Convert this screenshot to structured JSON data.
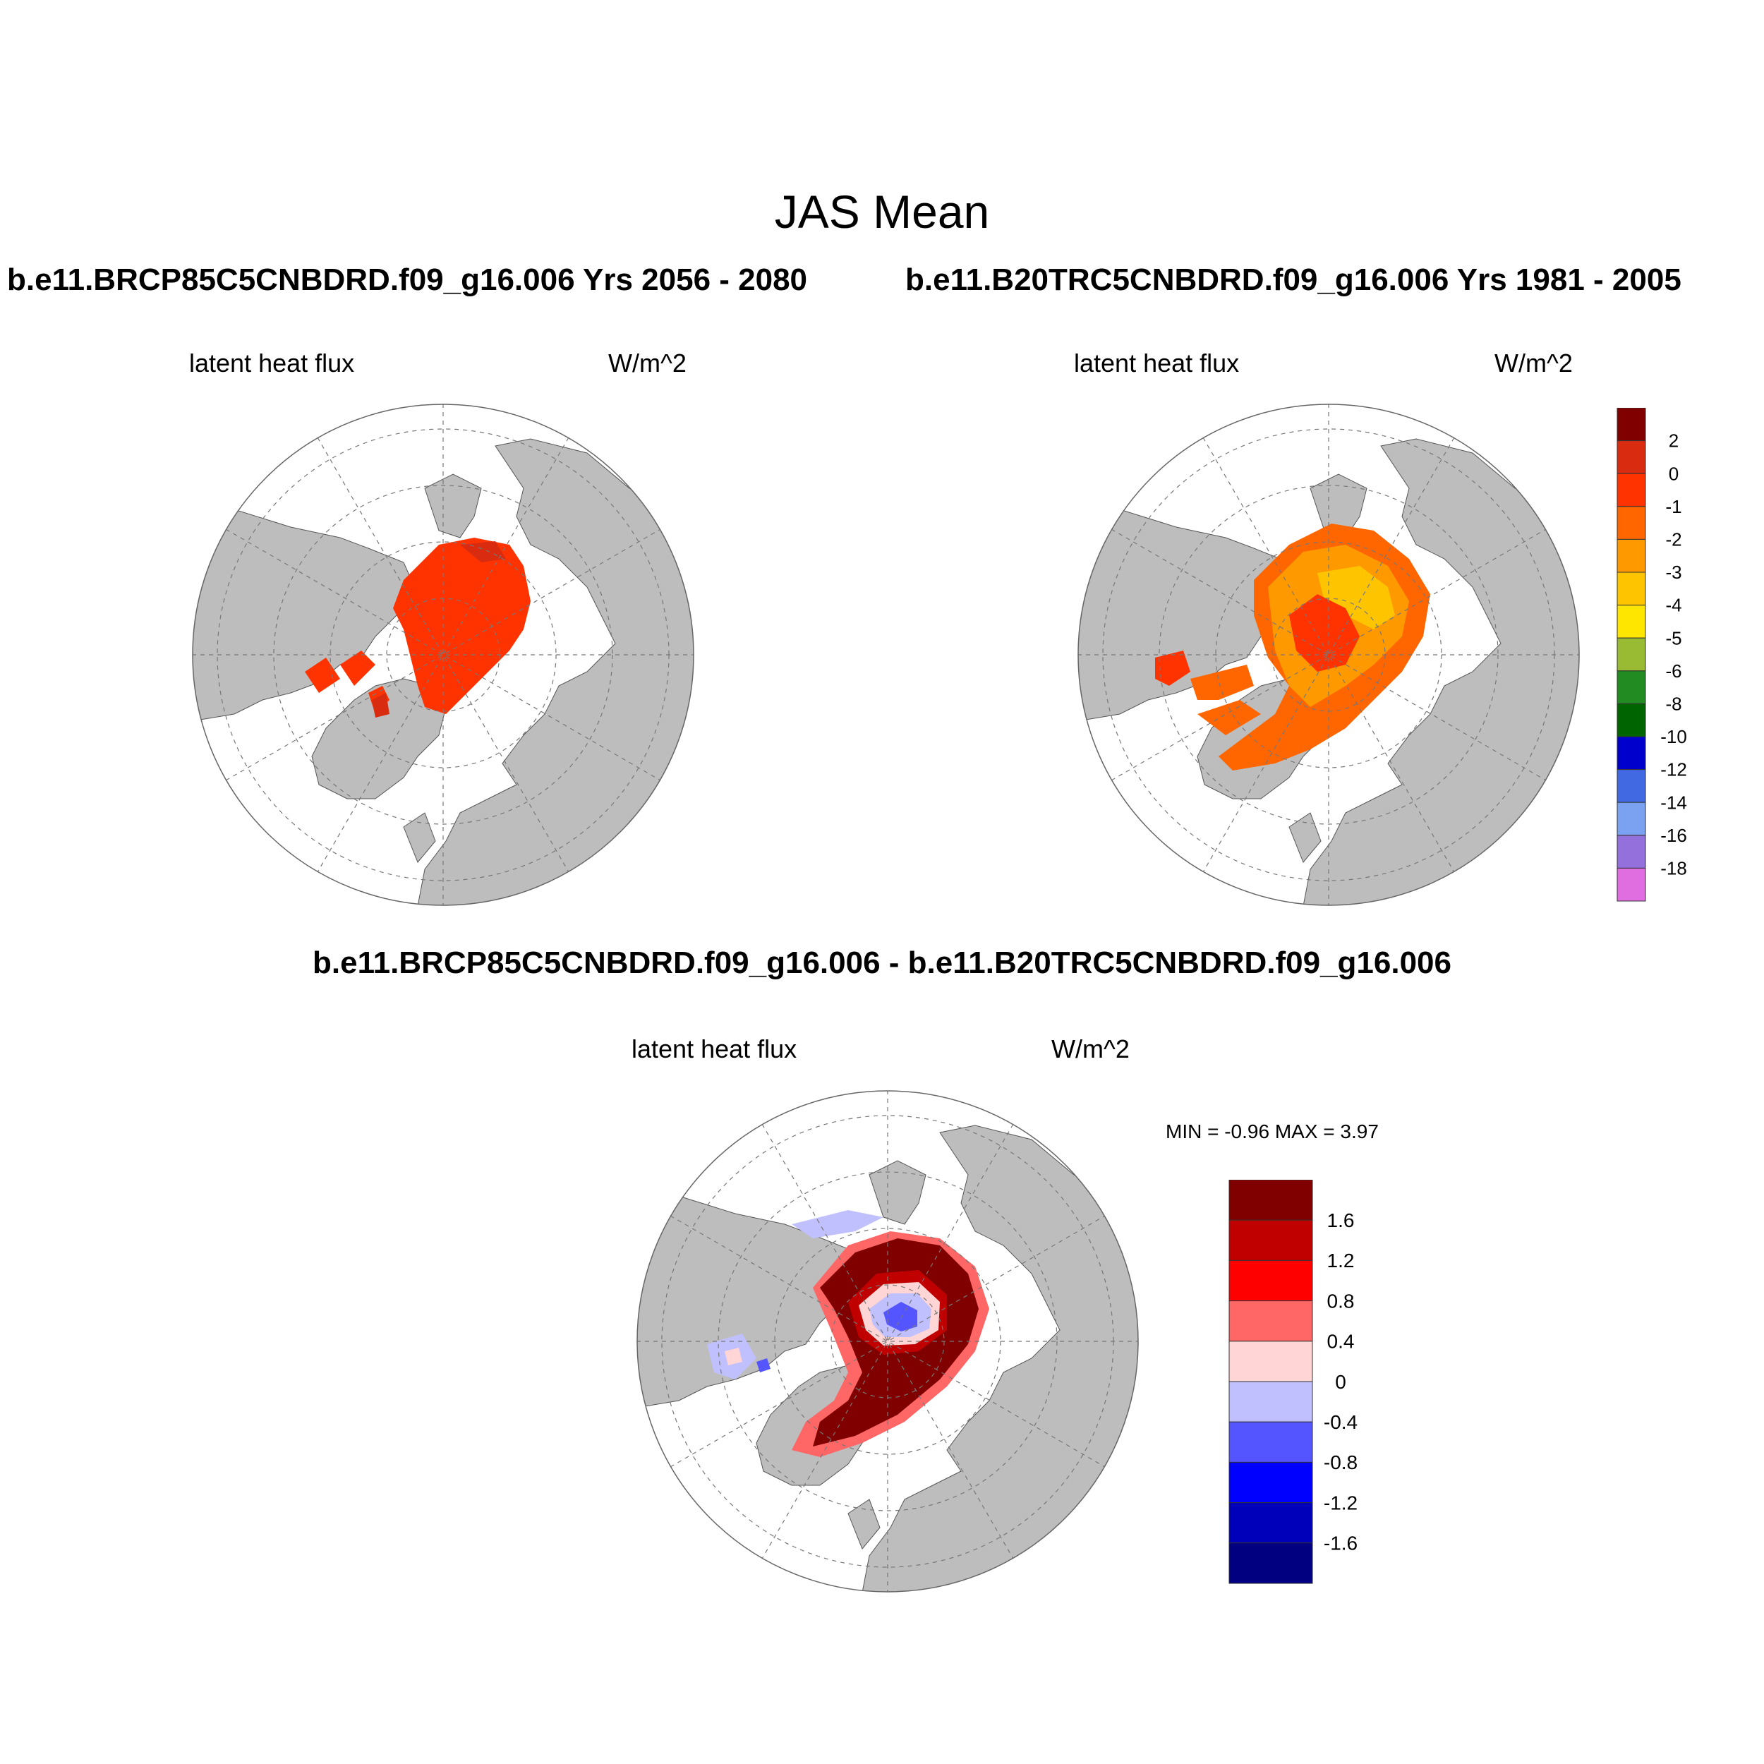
{
  "figure": {
    "title": "JAS Mean",
    "panel1_title": "b.e11.BRCP85C5CNBDRD.f09_g16.006  Yrs 2056 - 2080",
    "panel2_title": "b.e11.B20TRC5CNBDRD.f09_g16.006  Yrs 1981 - 2005",
    "diff_title": "b.e11.BRCP85C5CNBDRD.f09_g16.006 - b.e11.B20TRC5CNBDRD.f09_g16.006"
  },
  "panels": [
    {
      "var_label": "latent heat flux",
      "units": "W/m^2"
    },
    {
      "var_label": "latent heat flux",
      "units": "W/m^2"
    },
    {
      "var_label": "latent heat flux",
      "units": "W/m^2",
      "min_max": "MIN =  -0.96 MAX =   3.97"
    }
  ],
  "colorbar_main": {
    "colors": [
      "#800000",
      "#d92b10",
      "#ff3300",
      "#ff6600",
      "#ff9900",
      "#ffc400",
      "#ffe600",
      "#99bb33",
      "#228b22",
      "#006400",
      "#0000cd",
      "#4169e1",
      "#7ba2f0",
      "#9370db",
      "#e06ee0"
    ],
    "labels": [
      "2",
      "0",
      "-1",
      "-2",
      "-3",
      "-4",
      "-5",
      "-6",
      "-8",
      "-10",
      "-12",
      "-14",
      "-16",
      "-18"
    ]
  },
  "colorbar_diff": {
    "colors": [
      "#800000",
      "#c00000",
      "#ff0000",
      "#ff6666",
      "#ffd5d5",
      "#c0c0ff",
      "#5555ff",
      "#0000ff",
      "#0000bb",
      "#000080"
    ],
    "labels": [
      "1.6",
      "1.2",
      "0.8",
      "0.4",
      "0",
      "-0.4",
      "-0.8",
      "-1.2",
      "-1.6"
    ]
  },
  "map_colors": {
    "land": "#bdbdbd",
    "ocean": "#ffffff",
    "grid": "#888888"
  }
}
